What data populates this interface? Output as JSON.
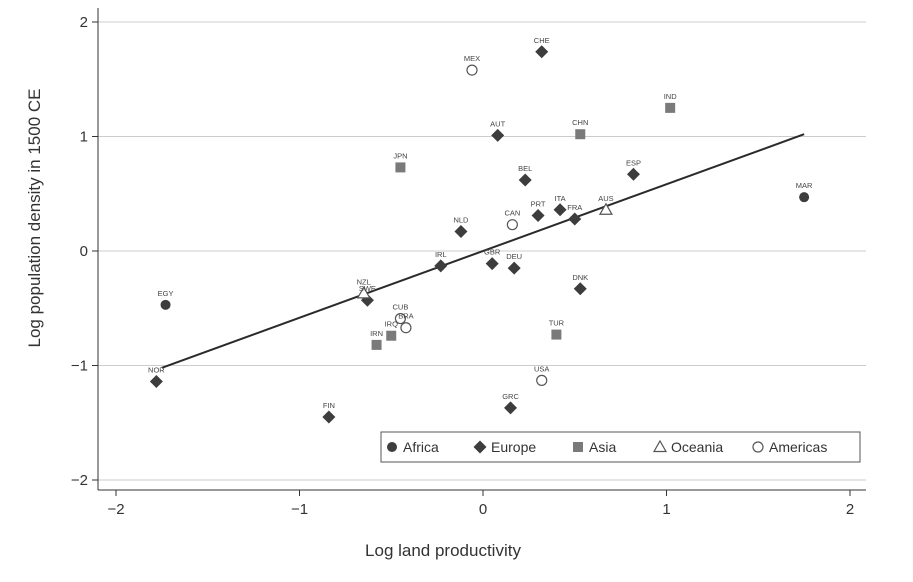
{
  "chart_data": {
    "type": "scatter",
    "title": "",
    "xlabel": "Log land productivity",
    "ylabel": "Log population density in 1500 CE",
    "xlim": [
      -2.05,
      2.05
    ],
    "ylim": [
      -2.08,
      2.08
    ],
    "x_ticks": [
      -2,
      -1,
      0,
      1,
      2
    ],
    "x_tick_labels": [
      "−2",
      "−1",
      "0",
      "1",
      "2"
    ],
    "y_ticks": [
      2,
      1,
      0,
      -1,
      -2
    ],
    "y_tick_labels": [
      "2",
      "1",
      "0",
      "−1",
      "−2"
    ],
    "grid": true,
    "legend_position": "bottom-right",
    "fit_line": {
      "x": [
        -1.75,
        1.75
      ],
      "y": [
        -1.02,
        1.02
      ]
    },
    "colors": {
      "filled": "#3d3d3d",
      "asia": "#7a7a7a",
      "gridline": "#cccccc",
      "line": "#2a2a2a"
    },
    "series": [
      {
        "name": "Africa",
        "marker": "circle-filled",
        "points": [
          {
            "label": "EGY",
            "x": -1.73,
            "y": -0.47
          },
          {
            "label": "MAR",
            "x": 1.75,
            "y": 0.47
          }
        ]
      },
      {
        "name": "Europe",
        "marker": "diamond",
        "points": [
          {
            "label": "CHE",
            "x": 0.32,
            "y": 1.74
          },
          {
            "label": "AUT",
            "x": 0.08,
            "y": 1.01
          },
          {
            "label": "BEL",
            "x": 0.23,
            "y": 0.62
          },
          {
            "label": "ESP",
            "x": 0.82,
            "y": 0.67
          },
          {
            "label": "PRT",
            "x": 0.3,
            "y": 0.31
          },
          {
            "label": "ITA",
            "x": 0.42,
            "y": 0.36
          },
          {
            "label": "FRA",
            "x": 0.5,
            "y": 0.28
          },
          {
            "label": "NLD",
            "x": -0.12,
            "y": 0.17
          },
          {
            "label": "IRL",
            "x": -0.23,
            "y": -0.13
          },
          {
            "label": "GBR",
            "x": 0.05,
            "y": -0.11
          },
          {
            "label": "DEU",
            "x": 0.17,
            "y": -0.15
          },
          {
            "label": "DNK",
            "x": 0.53,
            "y": -0.33
          },
          {
            "label": "SWE",
            "x": -0.63,
            "y": -0.43
          },
          {
            "label": "NOR",
            "x": -1.78,
            "y": -1.14
          },
          {
            "label": "FIN",
            "x": -0.84,
            "y": -1.45
          },
          {
            "label": "GRC",
            "x": 0.15,
            "y": -1.37
          }
        ]
      },
      {
        "name": "Asia",
        "marker": "square",
        "points": [
          {
            "label": "IND",
            "x": 1.02,
            "y": 1.25
          },
          {
            "label": "CHN",
            "x": 0.53,
            "y": 1.02
          },
          {
            "label": "JPN",
            "x": -0.45,
            "y": 0.73
          },
          {
            "label": "TUR",
            "x": 0.4,
            "y": -0.73
          },
          {
            "label": "IRN",
            "x": -0.58,
            "y": -0.82
          },
          {
            "label": "IRQ",
            "x": -0.5,
            "y": -0.74
          }
        ]
      },
      {
        "name": "Oceania",
        "marker": "triangle",
        "points": [
          {
            "label": "AUS",
            "x": 0.67,
            "y": 0.36
          },
          {
            "label": "NZL",
            "x": -0.65,
            "y": -0.37
          }
        ]
      },
      {
        "name": "Americas",
        "marker": "circle-open",
        "points": [
          {
            "label": "MEX",
            "x": -0.06,
            "y": 1.58
          },
          {
            "label": "CAN",
            "x": 0.16,
            "y": 0.23
          },
          {
            "label": "USA",
            "x": 0.32,
            "y": -1.13
          },
          {
            "label": "CUB",
            "x": -0.45,
            "y": -0.59
          },
          {
            "label": "BRA",
            "x": -0.42,
            "y": -0.67
          }
        ]
      }
    ],
    "legend": [
      "Africa",
      "Europe",
      "Asia",
      "Oceania",
      "Americas"
    ]
  }
}
